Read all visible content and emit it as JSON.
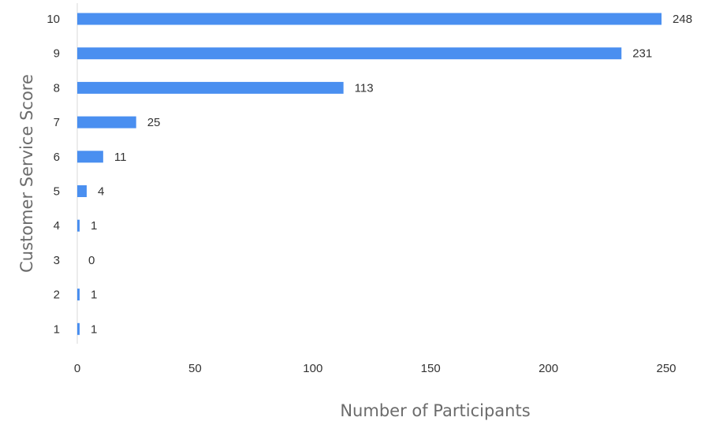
{
  "chart_data": {
    "type": "bar",
    "orientation": "horizontal",
    "categories": [
      "10",
      "9",
      "8",
      "7",
      "6",
      "5",
      "4",
      "3",
      "2",
      "1"
    ],
    "values": [
      248,
      231,
      113,
      25,
      11,
      4,
      1,
      0,
      1,
      1
    ],
    "xlabel": "Number of Participants",
    "ylabel": "Customer Service Score",
    "xlim": [
      0,
      250
    ],
    "xticks": [
      "0",
      "50",
      "100",
      "150",
      "200",
      "250"
    ],
    "xtick_values": [
      0,
      50,
      100,
      150,
      200,
      250
    ],
    "grid": false,
    "bar_color": "#4a8ff0",
    "data_labels": true
  }
}
